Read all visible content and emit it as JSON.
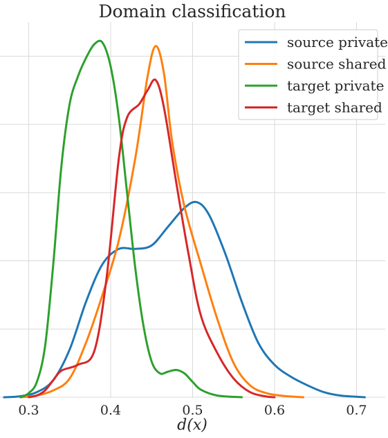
{
  "chart_data": {
    "type": "line",
    "title": "Domain classification",
    "xlabel": "d(x)",
    "ylabel": "",
    "xlim": [
      0.265,
      0.735
    ],
    "ylim": [
      0,
      11
    ],
    "xticks": [
      0.3,
      0.4,
      0.5,
      0.6,
      0.7
    ],
    "xtick_labels": [
      "0.3",
      "0.4",
      "0.5",
      "0.6",
      "0.7"
    ],
    "yticks": [
      0,
      2,
      4,
      6,
      8,
      10
    ],
    "grid": true,
    "legend_position": "top-right",
    "series": [
      {
        "name": "source private",
        "color": "#1f77b4",
        "points": [
          [
            0.27,
            0.0
          ],
          [
            0.29,
            0.03
          ],
          [
            0.31,
            0.15
          ],
          [
            0.33,
            0.5
          ],
          [
            0.35,
            1.4
          ],
          [
            0.37,
            2.8
          ],
          [
            0.39,
            3.9
          ],
          [
            0.41,
            4.35
          ],
          [
            0.43,
            4.35
          ],
          [
            0.45,
            4.45
          ],
          [
            0.47,
            5.0
          ],
          [
            0.49,
            5.55
          ],
          [
            0.505,
            5.72
          ],
          [
            0.52,
            5.35
          ],
          [
            0.54,
            4.2
          ],
          [
            0.56,
            2.8
          ],
          [
            0.58,
            1.6
          ],
          [
            0.6,
            0.95
          ],
          [
            0.62,
            0.6
          ],
          [
            0.64,
            0.35
          ],
          [
            0.66,
            0.15
          ],
          [
            0.68,
            0.05
          ],
          [
            0.71,
            0.0
          ]
        ]
      },
      {
        "name": "source shared",
        "color": "#ff7f0e",
        "points": [
          [
            0.29,
            0.0
          ],
          [
            0.31,
            0.05
          ],
          [
            0.33,
            0.2
          ],
          [
            0.35,
            0.55
          ],
          [
            0.37,
            1.6
          ],
          [
            0.39,
            3.0
          ],
          [
            0.41,
            4.6
          ],
          [
            0.43,
            7.0
          ],
          [
            0.445,
            9.4
          ],
          [
            0.455,
            10.3
          ],
          [
            0.465,
            9.5
          ],
          [
            0.475,
            7.5
          ],
          [
            0.49,
            5.6
          ],
          [
            0.51,
            3.9
          ],
          [
            0.53,
            2.3
          ],
          [
            0.55,
            1.0
          ],
          [
            0.57,
            0.35
          ],
          [
            0.59,
            0.12
          ],
          [
            0.61,
            0.04
          ],
          [
            0.635,
            0.0
          ]
        ]
      },
      {
        "name": "target private",
        "color": "#2ca02c",
        "points": [
          [
            0.29,
            0.0
          ],
          [
            0.3,
            0.12
          ],
          [
            0.31,
            0.45
          ],
          [
            0.32,
            1.5
          ],
          [
            0.33,
            3.9
          ],
          [
            0.34,
            6.8
          ],
          [
            0.35,
            8.6
          ],
          [
            0.36,
            9.4
          ],
          [
            0.37,
            9.95
          ],
          [
            0.38,
            10.35
          ],
          [
            0.39,
            10.4
          ],
          [
            0.4,
            9.7
          ],
          [
            0.41,
            8.2
          ],
          [
            0.42,
            6.0
          ],
          [
            0.43,
            3.8
          ],
          [
            0.44,
            2.1
          ],
          [
            0.45,
            1.05
          ],
          [
            0.46,
            0.7
          ],
          [
            0.47,
            0.75
          ],
          [
            0.48,
            0.8
          ],
          [
            0.49,
            0.7
          ],
          [
            0.5,
            0.45
          ],
          [
            0.51,
            0.22
          ],
          [
            0.53,
            0.05
          ],
          [
            0.56,
            0.0
          ]
        ]
      },
      {
        "name": "target shared",
        "color": "#d62728",
        "points": [
          [
            0.3,
            0.0
          ],
          [
            0.31,
            0.05
          ],
          [
            0.32,
            0.2
          ],
          [
            0.33,
            0.5
          ],
          [
            0.34,
            0.78
          ],
          [
            0.36,
            0.95
          ],
          [
            0.38,
            1.35
          ],
          [
            0.395,
            3.5
          ],
          [
            0.41,
            7.0
          ],
          [
            0.42,
            8.2
          ],
          [
            0.435,
            8.6
          ],
          [
            0.445,
            9.0
          ],
          [
            0.455,
            9.3
          ],
          [
            0.465,
            8.5
          ],
          [
            0.48,
            6.3
          ],
          [
            0.495,
            4.2
          ],
          [
            0.51,
            2.4
          ],
          [
            0.53,
            1.3
          ],
          [
            0.55,
            0.55
          ],
          [
            0.57,
            0.15
          ],
          [
            0.59,
            0.02
          ],
          [
            0.6,
            0.0
          ]
        ]
      }
    ]
  }
}
